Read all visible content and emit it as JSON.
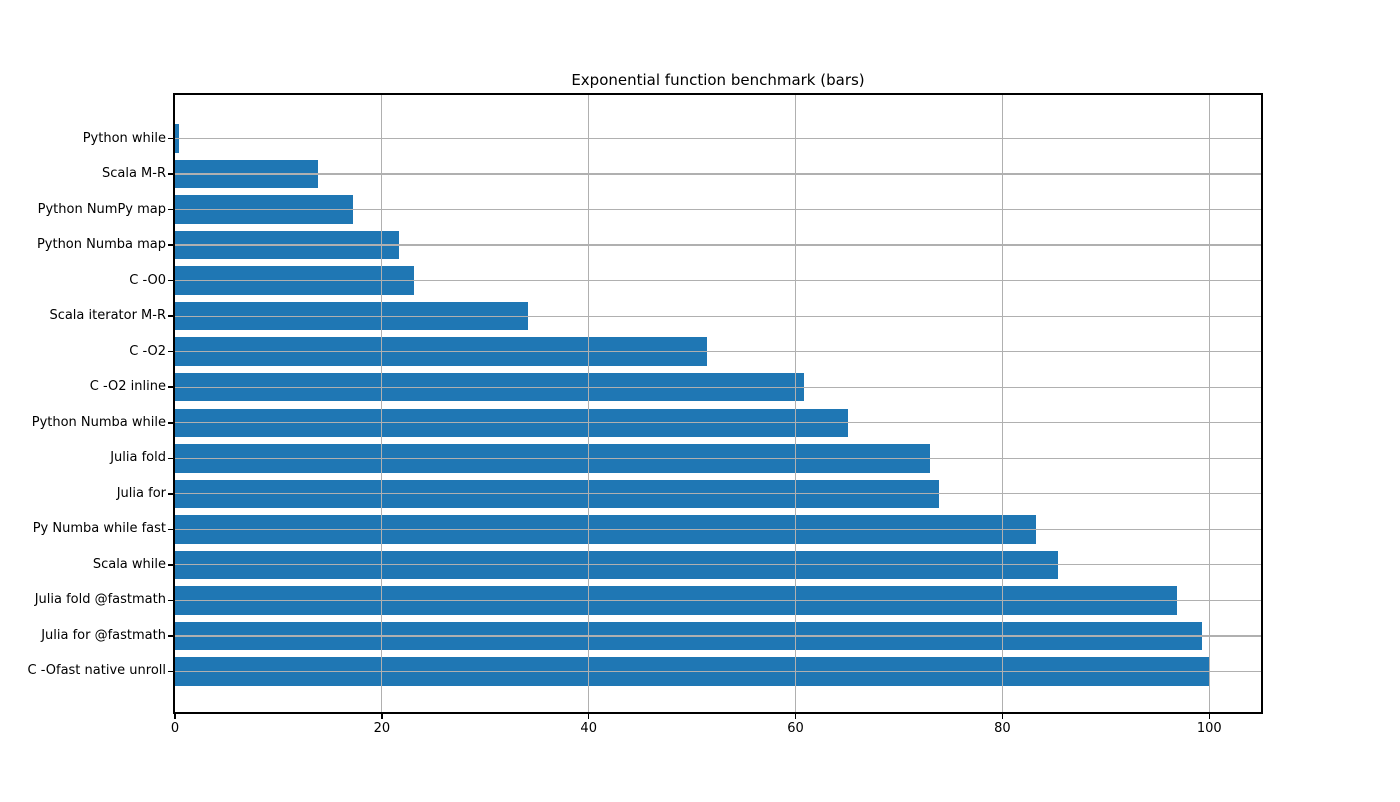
{
  "chart_data": {
    "type": "bar",
    "orientation": "horizontal",
    "title": "Exponential function benchmark (bars)",
    "categories": [
      "Python while",
      "Scala M-R",
      "Python NumPy map",
      "Python Numba map",
      "C -O0",
      "Scala iterator M-R",
      "C -O2",
      "C -O2 inline",
      "Python Numba while",
      "Julia fold",
      "Julia for",
      "Py Numba while fast",
      "Scala while",
      "Julia fold @fastmath",
      "Julia for @fastmath",
      "C -Ofast native unroll"
    ],
    "values": [
      0.4,
      13.8,
      17.2,
      21.7,
      23.1,
      34.1,
      51.4,
      60.8,
      65.1,
      73.0,
      73.9,
      83.2,
      85.4,
      96.9,
      99.3,
      100.0
    ],
    "category_order": "top-to-bottom",
    "xlabel": "",
    "ylabel": "",
    "xlim": [
      0,
      105
    ],
    "x_ticks": [
      0,
      20,
      40,
      60,
      80,
      100
    ],
    "grid": true,
    "grid_above_bars": true,
    "legend": "none",
    "bar_color": "#1f77b4",
    "grid_color": "#b0b0b0",
    "axis_color": "#000000",
    "background_color": "#ffffff"
  }
}
